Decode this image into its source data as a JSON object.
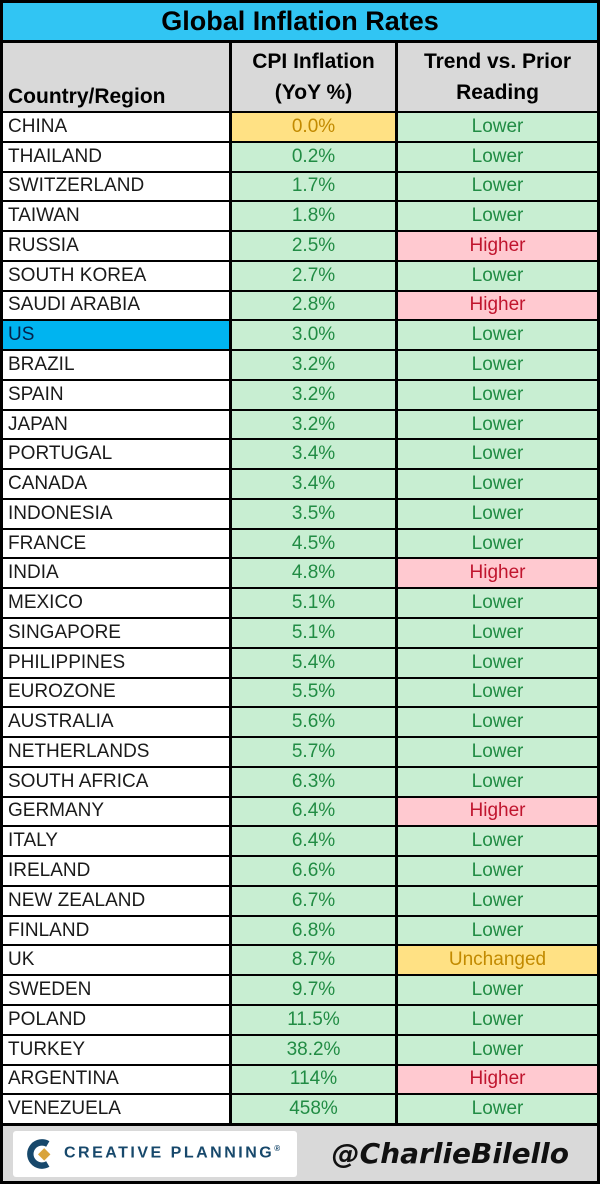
{
  "title": "Global Inflation Rates",
  "header": {
    "country": "Country/Region",
    "cpi_line1": "CPI Inflation",
    "cpi_line2": "(YoY %)",
    "trend_line1": "Trend vs. Prior",
    "trend_line2": "Reading"
  },
  "footer": {
    "brand": "CREATIVE PLANNING",
    "brand_mark": "®",
    "handle": "@CharlieBilello"
  },
  "colors": {
    "title_bg": "#31C5F3",
    "header_bg": "#D9D9D9",
    "footer_bg": "#D9D9D9",
    "green_bg": "#C8EED2",
    "green_text": "#218C44",
    "yellow_bg": "#FFE184",
    "yellow_text": "#C28A00",
    "pink_bg": "#FFC9D0",
    "pink_text": "#C0152E",
    "us_bg": "#00B4F0",
    "logo_navy": "#17486B",
    "logo_gold": "#D9A43B"
  },
  "chart_data": {
    "type": "table",
    "title": "Global Inflation Rates",
    "columns": [
      "Country/Region",
      "CPI Inflation (YoY %)",
      "Trend vs. Prior Reading"
    ],
    "rows": [
      {
        "country": "CHINA",
        "cpi": "0.0%",
        "trend": "Lower",
        "cpi_style": "yellow",
        "trend_style": "green",
        "highlight": false
      },
      {
        "country": "THAILAND",
        "cpi": "0.2%",
        "trend": "Lower",
        "cpi_style": "green",
        "trend_style": "green",
        "highlight": false
      },
      {
        "country": "SWITZERLAND",
        "cpi": "1.7%",
        "trend": "Lower",
        "cpi_style": "green",
        "trend_style": "green",
        "highlight": false
      },
      {
        "country": "TAIWAN",
        "cpi": "1.8%",
        "trend": "Lower",
        "cpi_style": "green",
        "trend_style": "green",
        "highlight": false
      },
      {
        "country": "RUSSIA",
        "cpi": "2.5%",
        "trend": "Higher",
        "cpi_style": "green",
        "trend_style": "pink",
        "highlight": false
      },
      {
        "country": "SOUTH KOREA",
        "cpi": "2.7%",
        "trend": "Lower",
        "cpi_style": "green",
        "trend_style": "green",
        "highlight": false
      },
      {
        "country": "SAUDI ARABIA",
        "cpi": "2.8%",
        "trend": "Higher",
        "cpi_style": "green",
        "trend_style": "pink",
        "highlight": false
      },
      {
        "country": "US",
        "cpi": "3.0%",
        "trend": "Lower",
        "cpi_style": "green",
        "trend_style": "green",
        "highlight": true
      },
      {
        "country": "BRAZIL",
        "cpi": "3.2%",
        "trend": "Lower",
        "cpi_style": "green",
        "trend_style": "green",
        "highlight": false
      },
      {
        "country": "SPAIN",
        "cpi": "3.2%",
        "trend": "Lower",
        "cpi_style": "green",
        "trend_style": "green",
        "highlight": false
      },
      {
        "country": "JAPAN",
        "cpi": "3.2%",
        "trend": "Lower",
        "cpi_style": "green",
        "trend_style": "green",
        "highlight": false
      },
      {
        "country": "PORTUGAL",
        "cpi": "3.4%",
        "trend": "Lower",
        "cpi_style": "green",
        "trend_style": "green",
        "highlight": false
      },
      {
        "country": "CANADA",
        "cpi": "3.4%",
        "trend": "Lower",
        "cpi_style": "green",
        "trend_style": "green",
        "highlight": false
      },
      {
        "country": "INDONESIA",
        "cpi": "3.5%",
        "trend": "Lower",
        "cpi_style": "green",
        "trend_style": "green",
        "highlight": false
      },
      {
        "country": "FRANCE",
        "cpi": "4.5%",
        "trend": "Lower",
        "cpi_style": "green",
        "trend_style": "green",
        "highlight": false
      },
      {
        "country": "INDIA",
        "cpi": "4.8%",
        "trend": "Higher",
        "cpi_style": "green",
        "trend_style": "pink",
        "highlight": false
      },
      {
        "country": "MEXICO",
        "cpi": "5.1%",
        "trend": "Lower",
        "cpi_style": "green",
        "trend_style": "green",
        "highlight": false
      },
      {
        "country": "SINGAPORE",
        "cpi": "5.1%",
        "trend": "Lower",
        "cpi_style": "green",
        "trend_style": "green",
        "highlight": false
      },
      {
        "country": "PHILIPPINES",
        "cpi": "5.4%",
        "trend": "Lower",
        "cpi_style": "green",
        "trend_style": "green",
        "highlight": false
      },
      {
        "country": "EUROZONE",
        "cpi": "5.5%",
        "trend": "Lower",
        "cpi_style": "green",
        "trend_style": "green",
        "highlight": false
      },
      {
        "country": "AUSTRALIA",
        "cpi": "5.6%",
        "trend": "Lower",
        "cpi_style": "green",
        "trend_style": "green",
        "highlight": false
      },
      {
        "country": "NETHERLANDS",
        "cpi": "5.7%",
        "trend": "Lower",
        "cpi_style": "green",
        "trend_style": "green",
        "highlight": false
      },
      {
        "country": "SOUTH AFRICA",
        "cpi": "6.3%",
        "trend": "Lower",
        "cpi_style": "green",
        "trend_style": "green",
        "highlight": false
      },
      {
        "country": "GERMANY",
        "cpi": "6.4%",
        "trend": "Higher",
        "cpi_style": "green",
        "trend_style": "pink",
        "highlight": false
      },
      {
        "country": "ITALY",
        "cpi": "6.4%",
        "trend": "Lower",
        "cpi_style": "green",
        "trend_style": "green",
        "highlight": false
      },
      {
        "country": "IRELAND",
        "cpi": "6.6%",
        "trend": "Lower",
        "cpi_style": "green",
        "trend_style": "green",
        "highlight": false
      },
      {
        "country": "NEW ZEALAND",
        "cpi": "6.7%",
        "trend": "Lower",
        "cpi_style": "green",
        "trend_style": "green",
        "highlight": false
      },
      {
        "country": "FINLAND",
        "cpi": "6.8%",
        "trend": "Lower",
        "cpi_style": "green",
        "trend_style": "green",
        "highlight": false
      },
      {
        "country": "UK",
        "cpi": "8.7%",
        "trend": "Unchanged",
        "cpi_style": "green",
        "trend_style": "yellow",
        "highlight": false
      },
      {
        "country": "SWEDEN",
        "cpi": "9.7%",
        "trend": "Lower",
        "cpi_style": "green",
        "trend_style": "green",
        "highlight": false
      },
      {
        "country": "POLAND",
        "cpi": "11.5%",
        "trend": "Lower",
        "cpi_style": "green",
        "trend_style": "green",
        "highlight": false
      },
      {
        "country": "TURKEY",
        "cpi": "38.2%",
        "trend": "Lower",
        "cpi_style": "green",
        "trend_style": "green",
        "highlight": false
      },
      {
        "country": "ARGENTINA",
        "cpi": "114%",
        "trend": "Higher",
        "cpi_style": "green",
        "trend_style": "pink",
        "highlight": false
      },
      {
        "country": "VENEZUELA",
        "cpi": "458%",
        "trend": "Lower",
        "cpi_style": "green",
        "trend_style": "green",
        "highlight": false
      }
    ]
  }
}
